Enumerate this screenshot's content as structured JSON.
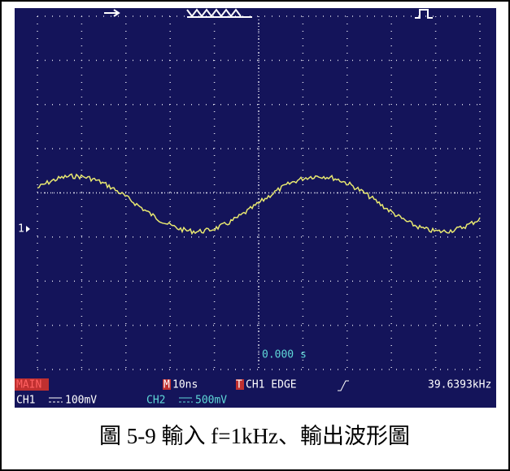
{
  "screen": {
    "marker": "1",
    "time_offset": "0.000 s",
    "mode": "MAIN",
    "timebase_icon": "M",
    "timebase": "10ns",
    "trigger_icon": "T",
    "trigger": "CH1 EDGE",
    "frequency": "39.6393kHz",
    "ch1_label": "CH1",
    "ch1_scale": "100mV",
    "ch2_label": "CH2",
    "ch2_scale": "500mV"
  },
  "caption": "圖 5-9 輸入 f=1kHz、輸出波形圖"
}
